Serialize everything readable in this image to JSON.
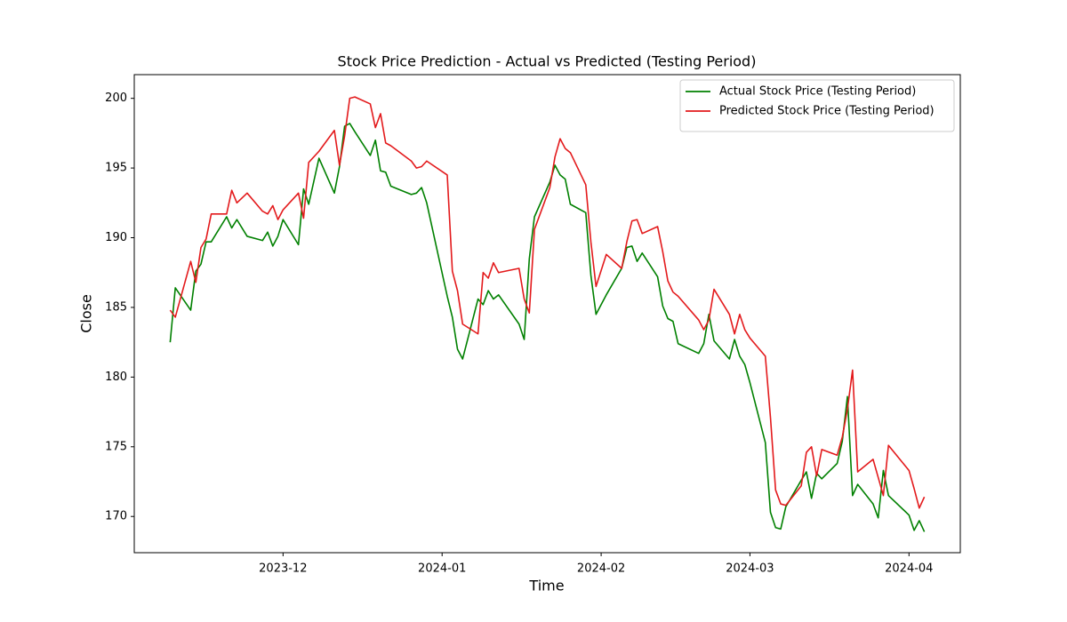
{
  "chart_data": {
    "type": "line",
    "title": "Stock Price Prediction - Actual vs Predicted (Testing Period)",
    "x_label": "Time",
    "y_label": "Close",
    "x": [
      "2023-11-09",
      "2023-11-10",
      "2023-11-13",
      "2023-11-14",
      "2023-11-15",
      "2023-11-16",
      "2023-11-17",
      "2023-11-20",
      "2023-11-21",
      "2023-11-22",
      "2023-11-24",
      "2023-11-27",
      "2023-11-28",
      "2023-11-29",
      "2023-11-30",
      "2023-12-01",
      "2023-12-04",
      "2023-12-05",
      "2023-12-06",
      "2023-12-08",
      "2023-12-11",
      "2023-12-12",
      "2023-12-13",
      "2023-12-14",
      "2023-12-15",
      "2023-12-18",
      "2023-12-19",
      "2023-12-20",
      "2023-12-21",
      "2023-12-22",
      "2023-12-26",
      "2023-12-27",
      "2023-12-28",
      "2023-12-29",
      "2024-01-02",
      "2024-01-03",
      "2024-01-04",
      "2024-01-05",
      "2024-01-08",
      "2024-01-09",
      "2024-01-10",
      "2024-01-11",
      "2024-01-12",
      "2024-01-16",
      "2024-01-17",
      "2024-01-18",
      "2024-01-19",
      "2024-01-22",
      "2024-01-23",
      "2024-01-24",
      "2024-01-25",
      "2024-01-26",
      "2024-01-29",
      "2024-01-30",
      "2024-01-31",
      "2024-02-02",
      "2024-02-05",
      "2024-02-06",
      "2024-02-07",
      "2024-02-08",
      "2024-02-09",
      "2024-02-12",
      "2024-02-13",
      "2024-02-14",
      "2024-02-15",
      "2024-02-16",
      "2024-02-20",
      "2024-02-21",
      "2024-02-22",
      "2024-02-23",
      "2024-02-26",
      "2024-02-27",
      "2024-02-28",
      "2024-02-29",
      "2024-03-01",
      "2024-03-04",
      "2024-03-05",
      "2024-03-06",
      "2024-03-07",
      "2024-03-08",
      "2024-03-11",
      "2024-03-12",
      "2024-03-13",
      "2024-03-14",
      "2024-03-15",
      "2024-03-18",
      "2024-03-19",
      "2024-03-20",
      "2024-03-21",
      "2024-03-22",
      "2024-03-25",
      "2024-03-26",
      "2024-03-27",
      "2024-03-28",
      "2024-04-01",
      "2024-04-02",
      "2024-04-03",
      "2024-04-04"
    ],
    "series": [
      {
        "name": "Actual Stock Price (Testing Period)",
        "color": "#008000",
        "values": [
          182.5,
          186.4,
          184.8,
          187.6,
          188.1,
          189.7,
          189.7,
          191.5,
          190.7,
          191.3,
          190.1,
          189.8,
          190.4,
          189.4,
          190.1,
          191.3,
          189.5,
          193.5,
          192.4,
          195.7,
          193.2,
          195.1,
          198.0,
          198.2,
          197.6,
          195.9,
          197.0,
          194.8,
          194.7,
          193.7,
          193.1,
          193.2,
          193.6,
          192.5,
          185.8,
          184.3,
          182.0,
          181.3,
          185.6,
          185.2,
          186.2,
          185.6,
          185.9,
          183.8,
          182.7,
          188.5,
          191.5,
          194.0,
          195.2,
          194.5,
          194.2,
          192.4,
          191.8,
          187.3,
          184.5,
          185.9,
          187.8,
          189.3,
          189.4,
          188.3,
          188.9,
          187.2,
          185.1,
          184.2,
          184.0,
          182.4,
          181.7,
          182.4,
          184.5,
          182.6,
          181.3,
          182.7,
          181.5,
          180.9,
          179.6,
          175.3,
          170.3,
          169.2,
          169.1,
          170.7,
          172.6,
          173.2,
          171.3,
          173.1,
          172.7,
          173.8,
          175.4,
          178.6,
          171.5,
          172.3,
          170.9,
          169.9,
          173.3,
          171.5,
          170.1,
          169.0,
          169.7,
          168.9
        ]
      },
      {
        "name": "Predicted Stock Price (Testing Period)",
        "color": "#e31a1c",
        "values": [
          184.8,
          184.3,
          188.3,
          186.8,
          189.3,
          189.9,
          191.7,
          191.7,
          193.4,
          192.5,
          193.2,
          191.9,
          191.7,
          192.3,
          191.3,
          192.0,
          193.2,
          191.4,
          195.4,
          196.2,
          197.7,
          195.2,
          197.3,
          200.0,
          200.1,
          199.6,
          197.9,
          198.9,
          196.8,
          196.6,
          195.5,
          195.0,
          195.1,
          195.5,
          194.5,
          187.6,
          186.2,
          183.8,
          183.1,
          187.5,
          187.1,
          188.2,
          187.5,
          187.8,
          185.6,
          184.6,
          190.6,
          193.6,
          195.8,
          197.1,
          196.4,
          196.1,
          193.8,
          189.7,
          186.5,
          188.8,
          187.8,
          189.7,
          191.2,
          191.3,
          190.3,
          190.8,
          189.0,
          186.9,
          186.1,
          185.8,
          184.1,
          183.4,
          184.1,
          186.3,
          184.5,
          183.1,
          184.5,
          183.4,
          182.8,
          181.5,
          177.1,
          171.9,
          170.9,
          170.8,
          172.2,
          174.6,
          175.0,
          172.9,
          174.8,
          174.4,
          175.7,
          177.7,
          180.5,
          173.2,
          174.1,
          172.8,
          171.5,
          175.1,
          173.3,
          172.0,
          170.6,
          171.4
        ]
      }
    ],
    "xlim": [
      "2023-11-02",
      "2024-04-11"
    ],
    "xticks": [
      {
        "value": "2023-12-01",
        "label": "2023-12"
      },
      {
        "value": "2024-01-01",
        "label": "2024-01"
      },
      {
        "value": "2024-02-01",
        "label": "2024-02"
      },
      {
        "value": "2024-03-01",
        "label": "2024-03"
      },
      {
        "value": "2024-04-01",
        "label": "2024-04"
      }
    ],
    "ylim": [
      167.4,
      201.7
    ],
    "yticks": [
      170,
      175,
      180,
      185,
      190,
      195,
      200
    ],
    "grid": false,
    "legend": "upper right"
  }
}
